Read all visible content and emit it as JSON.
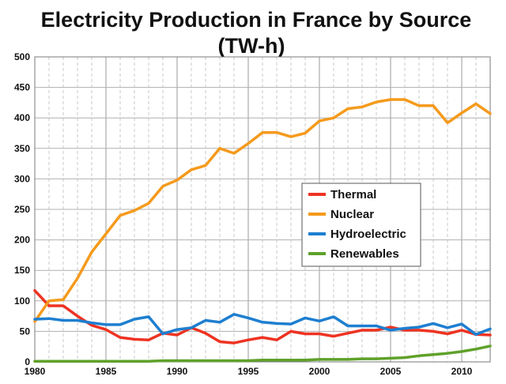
{
  "chart_data": {
    "type": "line",
    "title": "Electricity Production in France by Source",
    "subtitle": "(TW-h)",
    "xlabel": "",
    "ylabel": "",
    "xlim": [
      1980,
      2012
    ],
    "ylim": [
      0,
      500
    ],
    "grid": true,
    "legend_position": "center-right",
    "x_ticks": [
      "1980",
      "1985",
      "1990",
      "1995",
      "2000",
      "2005",
      "2010"
    ],
    "y_ticks": [
      "0",
      "50",
      "100",
      "150",
      "200",
      "250",
      "300",
      "350",
      "400",
      "450",
      "500"
    ],
    "x": [
      1980,
      1981,
      1982,
      1983,
      1984,
      1985,
      1986,
      1987,
      1988,
      1989,
      1990,
      1991,
      1992,
      1993,
      1994,
      1995,
      1996,
      1997,
      1998,
      1999,
      2000,
      2001,
      2002,
      2003,
      2004,
      2005,
      2006,
      2007,
      2008,
      2009,
      2010,
      2011,
      2012
    ],
    "series": [
      {
        "name": "Thermal",
        "color": "#ee3322",
        "values": [
          117,
          92,
          92,
          75,
          60,
          53,
          40,
          37,
          36,
          47,
          44,
          56,
          47,
          33,
          31,
          36,
          40,
          36,
          50,
          46,
          46,
          42,
          47,
          52,
          52,
          57,
          52,
          52,
          50,
          46,
          52,
          45,
          44
        ]
      },
      {
        "name": "Nuclear",
        "color": "#f59a1c",
        "values": [
          66,
          100,
          102,
          137,
          180,
          210,
          240,
          248,
          260,
          288,
          298,
          315,
          322,
          350,
          342,
          358,
          376,
          376,
          369,
          375,
          395,
          400,
          415,
          418,
          426,
          430,
          430,
          420,
          420,
          392,
          408,
          423,
          407
        ]
      },
      {
        "name": "Hydroelectric",
        "color": "#1e7fd0",
        "values": [
          70,
          71,
          68,
          68,
          64,
          61,
          61,
          70,
          74,
          46,
          53,
          56,
          68,
          65,
          78,
          72,
          65,
          63,
          62,
          72,
          67,
          74,
          59,
          59,
          59,
          52,
          55,
          57,
          63,
          56,
          62,
          45,
          54
        ]
      },
      {
        "name": "Renewables",
        "color": "#5fa12a",
        "values": [
          1,
          1,
          1,
          1,
          1,
          1,
          1,
          1,
          1,
          2,
          2,
          2,
          2,
          2,
          2,
          2,
          3,
          3,
          3,
          3,
          4,
          4,
          4,
          5,
          5,
          6,
          7,
          10,
          12,
          14,
          17,
          21,
          26
        ]
      }
    ]
  }
}
